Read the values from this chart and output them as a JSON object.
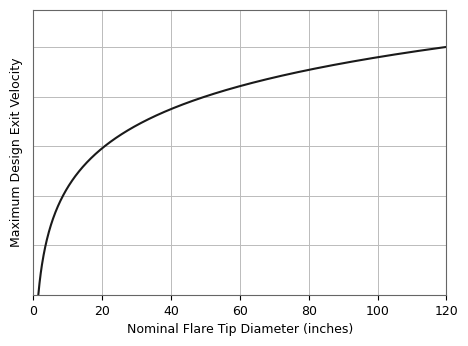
{
  "xlabel": "Nominal Flare Tip Diameter (inches)",
  "ylabel": "Maximum Design Exit Velocity",
  "xlim": [
    0,
    120
  ],
  "ylim_min": 0,
  "xticks": [
    0,
    20,
    40,
    60,
    80,
    100,
    120
  ],
  "yticks_count": 6,
  "grid": true,
  "line_color": "#1a1a1a",
  "line_width": 1.5,
  "background_color": "#ffffff",
  "x_start": 1.5,
  "x_end": 120,
  "curve_power": 0.35,
  "ylabel_fontsize": 9,
  "xlabel_fontsize": 9,
  "tick_fontsize": 9,
  "border_color": "#666666",
  "grid_color": "#bbbbbb",
  "grid_lw": 0.7
}
